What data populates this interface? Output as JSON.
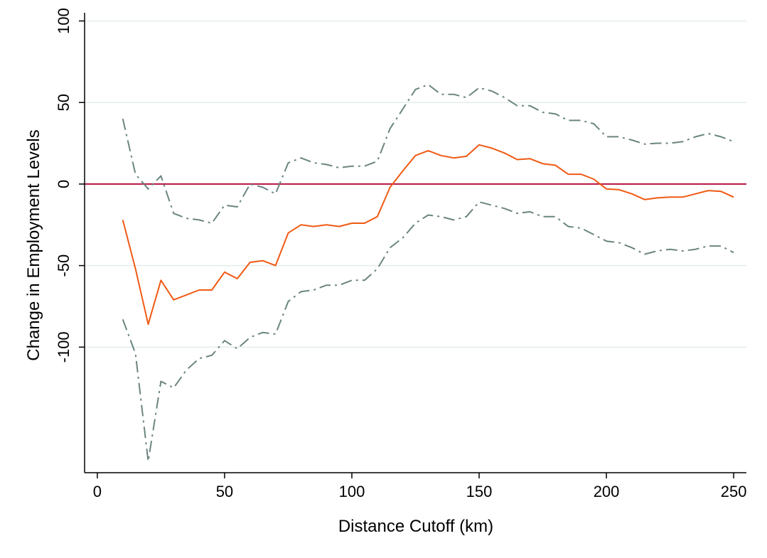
{
  "chart_data": {
    "type": "line",
    "xlabel": "Distance Cutoff (km)",
    "ylabel": "Change in Employment Levels",
    "xlim": [
      -5,
      255
    ],
    "ylim": [
      -177,
      105
    ],
    "xticks": [
      0,
      50,
      100,
      150,
      200,
      250
    ],
    "yticks": [
      100,
      50,
      0,
      -50,
      -100
    ],
    "grid": true,
    "reference_line": {
      "y": 0,
      "color": "#b5123e"
    },
    "x": [
      10,
      15,
      20,
      25,
      30,
      35,
      40,
      45,
      50,
      55,
      60,
      65,
      70,
      75,
      80,
      85,
      90,
      95,
      100,
      105,
      110,
      115,
      120,
      125,
      130,
      135,
      140,
      145,
      150,
      155,
      160,
      165,
      170,
      175,
      180,
      185,
      190,
      195,
      200,
      205,
      210,
      215,
      220,
      225,
      230,
      235,
      240,
      245,
      250
    ],
    "series": [
      {
        "role": "estimate",
        "color": "#f05a14",
        "style": "solid",
        "values": [
          -22,
          -52,
          -86,
          -59,
          -71,
          -68,
          -65,
          -65,
          -54,
          -58,
          -48,
          -47,
          -50,
          -30,
          -25,
          -26,
          -25,
          -26,
          -24,
          -24,
          -20,
          -2,
          8,
          17.5,
          20.5,
          17.5,
          16,
          17,
          24,
          22,
          19,
          15,
          15.5,
          12.5,
          11.5,
          6,
          6,
          3,
          -3,
          -3.5,
          -6,
          -9.5,
          -8.5,
          -8,
          -8,
          -6,
          -4,
          -4.5,
          -8
        ]
      },
      {
        "role": "upper-bound",
        "color": "#6b8580",
        "style": "dash-dot",
        "values": [
          40,
          6,
          -3,
          5,
          -18,
          -21,
          -22,
          -24,
          -13,
          -14,
          0,
          -2,
          -6,
          13,
          16,
          13,
          12,
          10,
          11,
          11,
          14,
          34,
          46,
          58,
          61,
          55,
          55,
          53,
          59,
          57,
          53,
          48,
          48,
          44,
          43,
          39,
          39,
          37,
          29,
          29,
          27,
          24.5,
          25,
          25,
          26,
          29,
          31,
          29,
          26
        ]
      },
      {
        "role": "lower-bound",
        "color": "#6b8580",
        "style": "dash-dot",
        "values": [
          -83,
          -104,
          -170,
          -121,
          -125,
          -114,
          -107,
          -105,
          -96,
          -101,
          -94,
          -91,
          -92,
          -72,
          -66,
          -65,
          -62,
          -62,
          -59,
          -59,
          -52,
          -39,
          -33,
          -24,
          -19,
          -20,
          -22,
          -20,
          -11,
          -13,
          -15,
          -18,
          -17,
          -20,
          -20,
          -26,
          -27,
          -31,
          -35,
          -36,
          -39,
          -43,
          -41,
          -40,
          -41,
          -40,
          -38,
          -38,
          -42
        ]
      }
    ]
  }
}
